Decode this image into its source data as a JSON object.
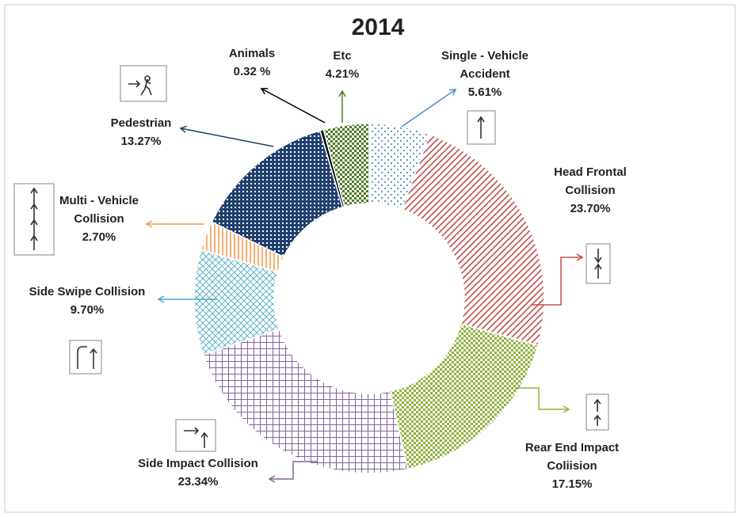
{
  "chart_data": {
    "type": "donut",
    "title": "2014",
    "categories": [
      "Single - Vehicle\nAccident",
      "Head Frontal\nCollision",
      "Rear End Impact\nColiision",
      "Side Impact Collision",
      "Side Swipe Collision",
      "Multi - Vehicle\nCollision",
      "Pedestrian",
      "Animals",
      "Etc"
    ],
    "series": [
      {
        "name": "2014",
        "values": [
          5.61,
          23.7,
          17.15,
          23.34,
          9.7,
          2.7,
          13.27,
          0.32,
          4.21
        ],
        "value_labels": [
          "5.61%",
          "23.70%",
          "17.15%",
          "23.34%",
          "9.70%",
          "2.70%",
          "13.27%",
          "0.32 %",
          "4.21%"
        ],
        "colors": [
          "#4f8fcf",
          "#c0504d",
          "#8fb33f",
          "#8064a2",
          "#4bacc6",
          "#f79646",
          "#1f3f6e",
          "#000000",
          "#4f7a28"
        ]
      }
    ]
  }
}
